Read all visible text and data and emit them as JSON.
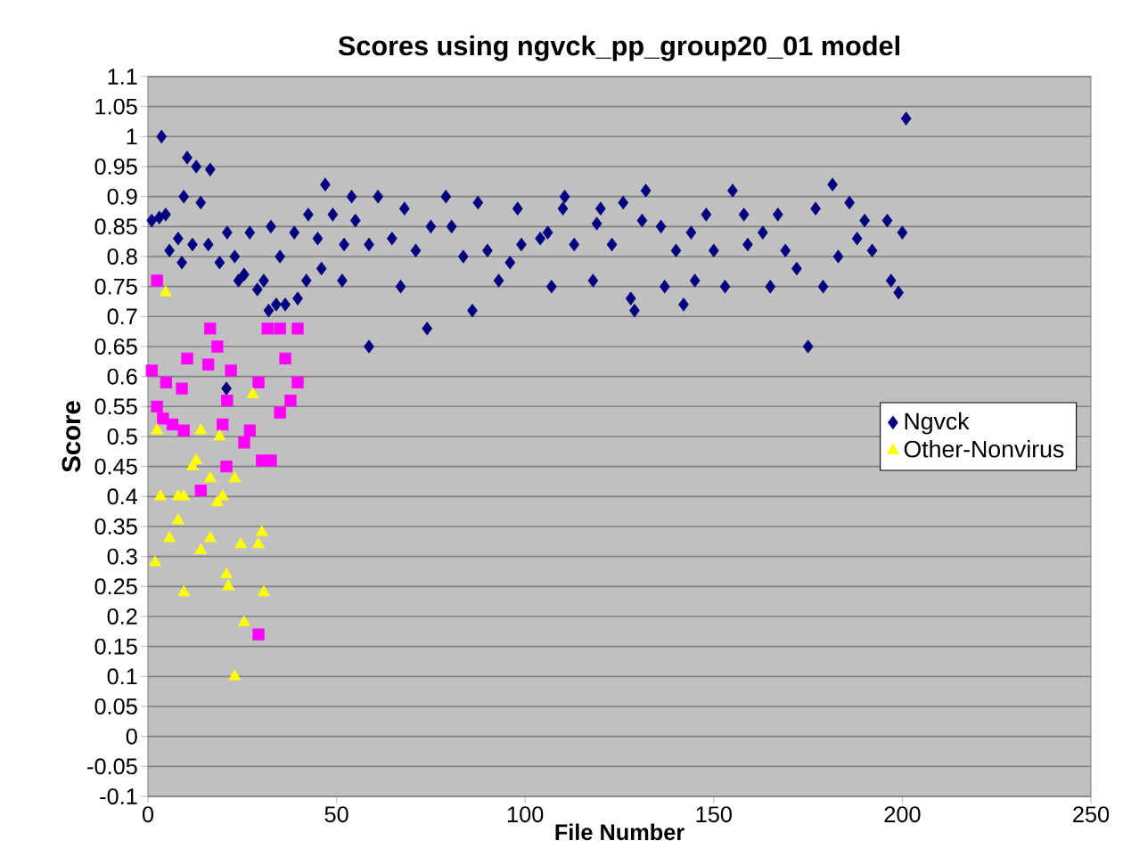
{
  "chart_data": {
    "type": "scatter",
    "title": "Scores using ngvck_pp_group20_01 model",
    "xlabel": "File Number",
    "ylabel": "Score",
    "xlim": [
      0,
      250
    ],
    "xticks": [
      0,
      50,
      100,
      150,
      200,
      250
    ],
    "ylim": [
      -0.1,
      1.1
    ],
    "yticks": [
      -0.1,
      -0.05,
      0,
      0.05,
      0.1,
      0.15,
      0.2,
      0.25,
      0.3,
      0.35,
      0.4,
      0.45,
      0.5,
      0.55,
      0.6,
      0.65,
      0.7,
      0.75,
      0.8,
      0.85,
      0.9,
      0.95,
      1,
      1.05,
      1.1
    ],
    "grid": "y",
    "legend": "right",
    "series": [
      {
        "name": "Ngvck",
        "color": "#000080",
        "marker": "diamond",
        "x": [
          1,
          3,
          3.6,
          4.7,
          5.7,
          8,
          9,
          9.5,
          10.4,
          11.8,
          12.8,
          14,
          16,
          16.5,
          19,
          20.8,
          21,
          23,
          24,
          25.5,
          27,
          29,
          30.7,
          32,
          32.6,
          34,
          35,
          36.4,
          38.8,
          39.7,
          42,
          42.5,
          45,
          46,
          47,
          49,
          51.5,
          52,
          54,
          55,
          58.6,
          58.6,
          61,
          64.7,
          67,
          68,
          71,
          74,
          75,
          79,
          80.5,
          83.6,
          86,
          87.5,
          90,
          93,
          96,
          98,
          99,
          104,
          106,
          107,
          110,
          110.5,
          113,
          118,
          119,
          120,
          123,
          126,
          128,
          129,
          131,
          132,
          136,
          137,
          140,
          142,
          144,
          145,
          148,
          150,
          153,
          155,
          158,
          159,
          163,
          165,
          167,
          169,
          172,
          175,
          177,
          179,
          181.5,
          183,
          186,
          188,
          190,
          192,
          196,
          197,
          199,
          200,
          201
        ],
        "values": [
          0.86,
          0.865,
          1.0,
          0.87,
          0.81,
          0.83,
          0.79,
          0.9,
          0.965,
          0.82,
          0.95,
          0.89,
          0.82,
          0.945,
          0.79,
          0.58,
          0.84,
          0.8,
          0.76,
          0.77,
          0.84,
          0.745,
          0.76,
          0.71,
          0.85,
          0.72,
          0.8,
          0.72,
          0.84,
          0.73,
          0.76,
          0.87,
          0.83,
          0.78,
          0.92,
          0.87,
          0.76,
          0.82,
          0.9,
          0.86,
          0.65,
          0.82,
          0.9,
          0.83,
          0.75,
          0.88,
          0.81,
          0.68,
          0.85,
          0.9,
          0.85,
          0.8,
          0.71,
          0.89,
          0.81,
          0.76,
          0.79,
          0.88,
          0.82,
          0.83,
          0.84,
          0.75,
          0.88,
          0.9,
          0.82,
          0.76,
          0.855,
          0.88,
          0.82,
          0.89,
          0.73,
          0.71,
          0.86,
          0.91,
          0.85,
          0.75,
          0.81,
          0.72,
          0.84,
          0.76,
          0.87,
          0.81,
          0.75,
          0.91,
          0.87,
          0.82,
          0.84,
          0.75,
          0.87,
          0.81,
          0.78,
          0.65,
          0.88,
          0.75,
          0.92,
          0.8,
          0.89,
          0.83,
          0.86,
          0.81,
          0.86,
          0.76,
          0.74,
          0.84,
          1.03
        ]
      },
      {
        "color": "#ff00ff",
        "marker": "square",
        "x": [
          1,
          2.4,
          2.4,
          4,
          4.8,
          6.5,
          9,
          9.5,
          10.4,
          14,
          16,
          16.5,
          18.4,
          19.8,
          20.8,
          21,
          22,
          25.5,
          27,
          29.3,
          29.3,
          30.2,
          31.7,
          32.6,
          35,
          35,
          36.4,
          37.8,
          39.7,
          39.7
        ],
        "values": [
          0.61,
          0.76,
          0.55,
          0.53,
          0.59,
          0.52,
          0.58,
          0.51,
          0.63,
          0.41,
          0.62,
          0.68,
          0.65,
          0.52,
          0.45,
          0.56,
          0.61,
          0.49,
          0.51,
          0.59,
          0.17,
          0.46,
          0.68,
          0.46,
          0.68,
          0.54,
          0.63,
          0.56,
          0.68,
          0.59
        ]
      },
      {
        "name": "Other-Nonvirus",
        "color": "#ffff00",
        "marker": "triangle",
        "x": [
          1.9,
          2.4,
          3.3,
          4.7,
          5.7,
          8,
          8,
          9.5,
          9.5,
          11.8,
          12.8,
          14,
          14,
          16.5,
          16.5,
          18.4,
          19,
          19.8,
          20.8,
          21.3,
          23,
          23,
          24.6,
          25.5,
          27.8,
          29.3,
          30.2,
          30.7
        ],
        "values": [
          0.29,
          0.51,
          0.4,
          0.74,
          0.33,
          0.4,
          0.36,
          0.4,
          0.24,
          0.45,
          0.46,
          0.51,
          0.31,
          0.43,
          0.33,
          0.39,
          0.5,
          0.4,
          0.27,
          0.25,
          0.43,
          0.1,
          0.32,
          0.19,
          0.57,
          0.32,
          0.34,
          0.24
        ]
      }
    ]
  }
}
